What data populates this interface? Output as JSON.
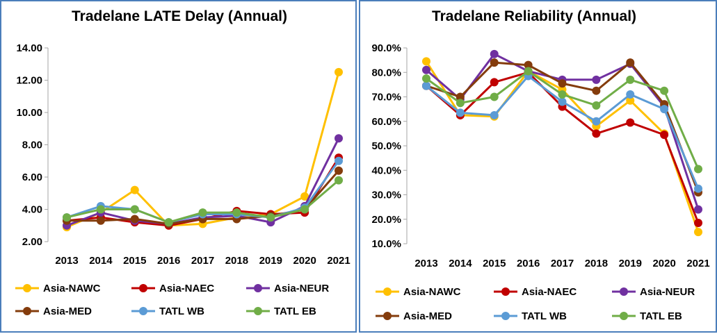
{
  "chart_data": [
    {
      "type": "line",
      "title": "Tradelane LATE Delay (Annual)",
      "x": [
        "2013",
        "2014",
        "2015",
        "2016",
        "2017",
        "2018",
        "2019",
        "2020",
        "2021"
      ],
      "ylim": [
        2,
        14
      ],
      "ytick_labels": [
        "2.00",
        "4.00",
        "6.00",
        "8.00",
        "10.00",
        "12.00",
        "14.00"
      ],
      "grid": false,
      "legend_position": "bottom",
      "series": [
        {
          "name": "Asia-NAWC",
          "color": "#ffc000",
          "values": [
            2.9,
            3.8,
            5.2,
            3.0,
            3.1,
            3.5,
            3.7,
            4.8,
            12.5
          ]
        },
        {
          "name": "Asia-NAEC",
          "color": "#c00000",
          "values": [
            3.3,
            3.5,
            3.2,
            3.0,
            3.4,
            3.9,
            3.7,
            3.8,
            7.2
          ]
        },
        {
          "name": "Asia-NEUR",
          "color": "#7030a0",
          "values": [
            3.0,
            3.8,
            3.3,
            3.1,
            3.5,
            3.6,
            3.2,
            4.2,
            8.4
          ]
        },
        {
          "name": "Asia-MED",
          "color": "#843c0c",
          "values": [
            3.3,
            3.3,
            3.4,
            3.1,
            3.4,
            3.4,
            3.6,
            4.0,
            6.4
          ]
        },
        {
          "name": "TATL WB",
          "color": "#5b9bd5",
          "values": [
            3.5,
            4.2,
            4.0,
            3.2,
            3.7,
            3.7,
            3.5,
            4.1,
            7.0
          ]
        },
        {
          "name": "TATL EB",
          "color": "#70ad47",
          "values": [
            3.5,
            4.0,
            4.0,
            3.2,
            3.8,
            3.8,
            3.5,
            4.0,
            5.8
          ]
        }
      ]
    },
    {
      "type": "line",
      "title": "Tradelane Reliability (Annual)",
      "x": [
        "2013",
        "2014",
        "2015",
        "2016",
        "2017",
        "2018",
        "2019",
        "2020",
        "2021"
      ],
      "ylim": [
        10,
        90
      ],
      "ytick_labels": [
        "10.0%",
        "20.0%",
        "30.0%",
        "40.0%",
        "50.0%",
        "60.0%",
        "70.0%",
        "80.0%",
        "90.0%"
      ],
      "grid": false,
      "legend_position": "bottom",
      "series": [
        {
          "name": "Asia-NAWC",
          "color": "#ffc000",
          "values": [
            84.5,
            62.5,
            62.0,
            80.5,
            73.0,
            58.0,
            68.5,
            55.0,
            14.8
          ]
        },
        {
          "name": "Asia-NAEC",
          "color": "#c00000",
          "values": [
            74.5,
            62.5,
            76.0,
            80.0,
            66.0,
            55.0,
            59.5,
            54.5,
            18.5
          ]
        },
        {
          "name": "Asia-NEUR",
          "color": "#7030a0",
          "values": [
            81.0,
            69.0,
            87.5,
            80.5,
            77.0,
            77.0,
            83.5,
            66.0,
            24.0
          ]
        },
        {
          "name": "Asia-MED",
          "color": "#843c0c",
          "values": [
            74.5,
            70.0,
            84.0,
            83.0,
            75.5,
            72.5,
            84.0,
            67.0,
            31.0
          ]
        },
        {
          "name": "TATL WB",
          "color": "#5b9bd5",
          "values": [
            74.5,
            63.5,
            62.5,
            78.5,
            68.0,
            60.0,
            71.0,
            65.0,
            32.5
          ]
        },
        {
          "name": "TATL EB",
          "color": "#70ad47",
          "values": [
            77.5,
            67.5,
            70.0,
            80.5,
            71.0,
            66.5,
            77.0,
            72.5,
            40.5
          ]
        }
      ]
    }
  ]
}
